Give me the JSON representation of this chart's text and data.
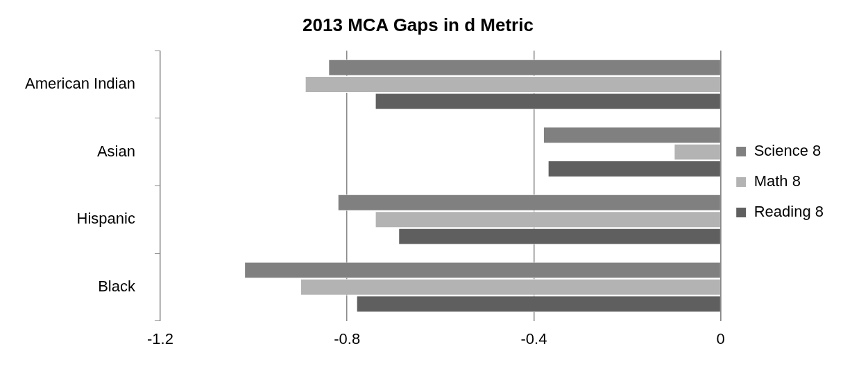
{
  "chart_data": {
    "type": "bar",
    "orientation": "horizontal",
    "title": "2013 MCA Gaps in d Metric",
    "categories": [
      "American Indian",
      "Asian",
      "Hispanic",
      "Black"
    ],
    "series": [
      {
        "name": "Science 8",
        "color": "#808080",
        "values": [
          -0.84,
          -0.38,
          -0.82,
          -1.02
        ]
      },
      {
        "name": "Math 8",
        "color": "#b3b3b3",
        "values": [
          -0.89,
          -0.1,
          -0.74,
          -0.9
        ]
      },
      {
        "name": "Reading 8",
        "color": "#5f5f5f",
        "values": [
          -0.74,
          -0.37,
          -0.69,
          -0.78
        ]
      }
    ],
    "xlim": [
      -1.2,
      0
    ],
    "xticks": [
      -1.2,
      -0.8,
      -0.4,
      0
    ],
    "grid": "x",
    "legend": "right"
  }
}
